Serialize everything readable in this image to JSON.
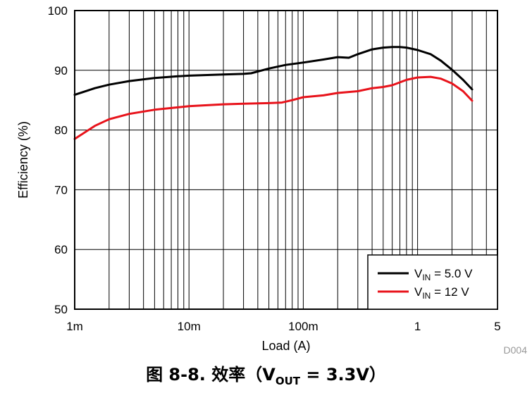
{
  "chart_data": {
    "type": "line",
    "x_scale": "log",
    "xlabel": "Load (A)",
    "ylabel": "Efficiency (%)",
    "xlim": [
      0.001,
      5
    ],
    "ylim": [
      50,
      100
    ],
    "x_ticks": [
      0.001,
      0.01,
      0.1,
      1,
      5
    ],
    "x_tick_labels": [
      "1m",
      "10m",
      "100m",
      "1",
      "5"
    ],
    "y_ticks": [
      50,
      60,
      70,
      80,
      90,
      100
    ],
    "y_tick_labels": [
      "50",
      "60",
      "70",
      "80",
      "90",
      "100"
    ],
    "grid": true,
    "legend_position": "bottom-right",
    "series": [
      {
        "name": "V_IN = 5.0 V",
        "legend_main": "V",
        "legend_sub": "IN",
        "legend_rest": " = 5.0 V",
        "color": "#000000",
        "x": [
          0.001,
          0.0015,
          0.002,
          0.003,
          0.005,
          0.008,
          0.01,
          0.02,
          0.03,
          0.035,
          0.05,
          0.07,
          0.1,
          0.15,
          0.2,
          0.25,
          0.3,
          0.4,
          0.5,
          0.6,
          0.7,
          0.8,
          1.0,
          1.3,
          1.6,
          2.0,
          2.5,
          3.0
        ],
        "y": [
          85.9,
          87.0,
          87.6,
          88.2,
          88.7,
          89.0,
          89.1,
          89.3,
          89.4,
          89.5,
          90.3,
          90.9,
          91.3,
          91.8,
          92.2,
          92.1,
          92.7,
          93.5,
          93.8,
          93.9,
          93.9,
          93.8,
          93.4,
          92.7,
          91.6,
          90.1,
          88.4,
          86.8
        ]
      },
      {
        "name": "V_IN = 12 V",
        "legend_main": "V",
        "legend_sub": "IN",
        "legend_rest": " = 12 V",
        "color": "#e8131b",
        "x": [
          0.001,
          0.0015,
          0.002,
          0.003,
          0.005,
          0.008,
          0.01,
          0.02,
          0.03,
          0.05,
          0.065,
          0.08,
          0.1,
          0.15,
          0.2,
          0.3,
          0.4,
          0.5,
          0.6,
          0.8,
          1.0,
          1.3,
          1.6,
          2.0,
          2.5,
          3.0
        ],
        "y": [
          78.5,
          80.7,
          81.8,
          82.7,
          83.4,
          83.8,
          84.0,
          84.3,
          84.4,
          84.5,
          84.6,
          85.0,
          85.5,
          85.8,
          86.2,
          86.5,
          87.0,
          87.2,
          87.5,
          88.4,
          88.8,
          88.9,
          88.6,
          87.8,
          86.5,
          84.9
        ]
      }
    ]
  },
  "figure_id": "D004",
  "caption": {
    "prefix": "图 8-8. 效率（V",
    "sub": "OUT",
    "suffix": " = 3.3V）"
  }
}
